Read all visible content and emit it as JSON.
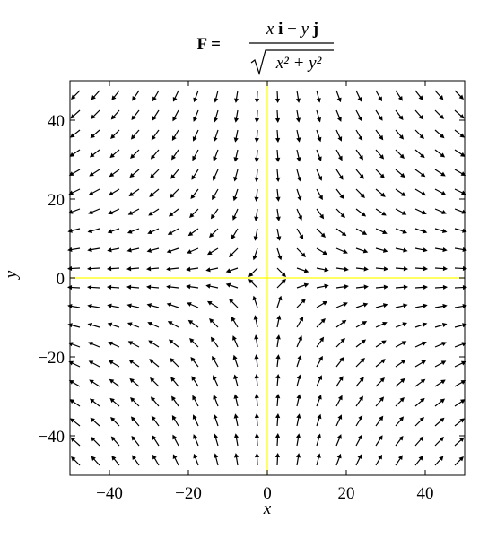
{
  "chart_data": {
    "type": "quiver",
    "title": {
      "lhs": "F =",
      "numerator": [
        "x",
        "i",
        "−",
        "y",
        "j"
      ],
      "denominator": "x² + y²"
    },
    "xlabel": "x",
    "ylabel": "y",
    "xlim": [
      -50,
      50
    ],
    "ylim": [
      -50,
      50
    ],
    "xticks": [
      {
        "value": -40,
        "label": "−40"
      },
      {
        "value": -20,
        "label": "−20"
      },
      0,
      20,
      40
    ],
    "yticks": [
      {
        "value": -40,
        "label": "−40"
      },
      {
        "value": -20,
        "label": "−20"
      },
      0,
      20,
      40
    ],
    "color": "#000000",
    "axis_line_color": "#ffff00",
    "x": [
      -47.5,
      -42.5,
      -37.5,
      -32.5,
      -27.5,
      -22.5,
      -17.5,
      -12.5,
      -7.5,
      -2.5,
      2.5,
      7.5,
      12.5,
      17.5,
      22.5,
      27.5,
      32.5,
      37.5,
      42.5,
      47.5
    ],
    "y": [
      -47.5,
      -42.5,
      -37.5,
      -32.5,
      -27.5,
      -22.5,
      -17.5,
      -12.5,
      -7.5,
      -2.5,
      2.5,
      7.5,
      12.5,
      17.5,
      22.5,
      27.5,
      32.5,
      37.5,
      42.5,
      47.5
    ],
    "u": [
      [
        -0.71,
        -0.67,
        -0.62,
        -0.56,
        -0.5,
        -0.43,
        -0.35,
        -0.25,
        -0.16,
        -0.05,
        0.05,
        0.16,
        0.25,
        0.35,
        0.43,
        0.5,
        0.56,
        0.62,
        0.67,
        0.71
      ],
      [
        -0.75,
        -0.71,
        -0.66,
        -0.61,
        -0.54,
        -0.47,
        -0.38,
        -0.28,
        -0.17,
        -0.06,
        0.06,
        0.17,
        0.28,
        0.38,
        0.47,
        0.54,
        0.61,
        0.66,
        0.71,
        0.75
      ],
      [
        -0.78,
        -0.75,
        -0.71,
        -0.65,
        -0.59,
        -0.51,
        -0.42,
        -0.32,
        -0.2,
        -0.07,
        0.07,
        0.2,
        0.32,
        0.42,
        0.51,
        0.59,
        0.65,
        0.71,
        0.75,
        0.78
      ],
      [
        -0.83,
        -0.79,
        -0.76,
        -0.71,
        -0.65,
        -0.57,
        -0.47,
        -0.36,
        -0.22,
        -0.08,
        0.08,
        0.22,
        0.36,
        0.47,
        0.57,
        0.65,
        0.71,
        0.76,
        0.79,
        0.83
      ],
      [
        -0.87,
        -0.84,
        -0.81,
        -0.76,
        -0.71,
        -0.63,
        -0.54,
        -0.41,
        -0.26,
        -0.09,
        0.09,
        0.26,
        0.41,
        0.54,
        0.63,
        0.71,
        0.76,
        0.81,
        0.84,
        0.87
      ],
      [
        -0.9,
        -0.88,
        -0.86,
        -0.82,
        -0.77,
        -0.71,
        -0.61,
        -0.49,
        -0.32,
        -0.11,
        0.11,
        0.32,
        0.49,
        0.61,
        0.71,
        0.77,
        0.82,
        0.86,
        0.88,
        0.9
      ],
      [
        -0.94,
        -0.92,
        -0.91,
        -0.88,
        -0.84,
        -0.79,
        -0.71,
        -0.58,
        -0.39,
        -0.14,
        0.14,
        0.39,
        0.58,
        0.71,
        0.79,
        0.84,
        0.88,
        0.91,
        0.92,
        0.94
      ],
      [
        -0.97,
        -0.96,
        -0.95,
        -0.93,
        -0.91,
        -0.87,
        -0.81,
        -0.71,
        -0.51,
        -0.2,
        0.2,
        0.51,
        0.71,
        0.81,
        0.87,
        0.91,
        0.93,
        0.95,
        0.96,
        0.97
      ],
      [
        -0.99,
        -0.98,
        -0.98,
        -0.97,
        -0.96,
        -0.95,
        -0.92,
        -0.86,
        -0.71,
        -0.32,
        0.32,
        0.71,
        0.86,
        0.92,
        0.95,
        0.96,
        0.97,
        0.98,
        0.98,
        0.99
      ],
      [
        -1,
        -1,
        -1,
        -1,
        -1,
        -0.99,
        -0.99,
        -0.98,
        -0.95,
        -0.71,
        0.71,
        0.95,
        0.98,
        0.99,
        0.99,
        1,
        1,
        1,
        1,
        1
      ],
      [
        -1,
        -1,
        -1,
        -1,
        -1,
        -0.99,
        -0.99,
        -0.98,
        -0.95,
        -0.71,
        0.71,
        0.95,
        0.98,
        0.99,
        0.99,
        1,
        1,
        1,
        1,
        1
      ],
      [
        -0.99,
        -0.98,
        -0.98,
        -0.97,
        -0.96,
        -0.95,
        -0.92,
        -0.86,
        -0.71,
        -0.32,
        0.32,
        0.71,
        0.86,
        0.92,
        0.95,
        0.96,
        0.97,
        0.98,
        0.98,
        0.99
      ],
      [
        -0.97,
        -0.96,
        -0.95,
        -0.93,
        -0.91,
        -0.87,
        -0.81,
        -0.71,
        -0.51,
        -0.2,
        0.2,
        0.51,
        0.71,
        0.81,
        0.87,
        0.91,
        0.93,
        0.95,
        0.96,
        0.97
      ],
      [
        -0.94,
        -0.92,
        -0.91,
        -0.88,
        -0.84,
        -0.79,
        -0.71,
        -0.58,
        -0.39,
        -0.14,
        0.14,
        0.39,
        0.58,
        0.71,
        0.79,
        0.84,
        0.88,
        0.91,
        0.92,
        0.94
      ],
      [
        -0.9,
        -0.88,
        -0.86,
        -0.82,
        -0.77,
        -0.71,
        -0.61,
        -0.49,
        -0.32,
        -0.11,
        0.11,
        0.32,
        0.49,
        0.61,
        0.71,
        0.77,
        0.82,
        0.86,
        0.88,
        0.9
      ],
      [
        -0.87,
        -0.84,
        -0.81,
        -0.76,
        -0.71,
        -0.63,
        -0.54,
        -0.41,
        -0.26,
        -0.09,
        0.09,
        0.26,
        0.41,
        0.54,
        0.63,
        0.71,
        0.76,
        0.81,
        0.84,
        0.87
      ],
      [
        -0.83,
        -0.79,
        -0.76,
        -0.71,
        -0.65,
        -0.57,
        -0.47,
        -0.36,
        -0.22,
        -0.08,
        0.08,
        0.22,
        0.36,
        0.47,
        0.57,
        0.65,
        0.71,
        0.76,
        0.79,
        0.83
      ],
      [
        -0.78,
        -0.75,
        -0.71,
        -0.65,
        -0.59,
        -0.51,
        -0.42,
        -0.32,
        -0.2,
        -0.07,
        0.07,
        0.2,
        0.32,
        0.42,
        0.51,
        0.59,
        0.65,
        0.71,
        0.75,
        0.78
      ],
      [
        -0.75,
        -0.71,
        -0.66,
        -0.61,
        -0.54,
        -0.47,
        -0.38,
        -0.28,
        -0.17,
        -0.06,
        0.06,
        0.17,
        0.28,
        0.38,
        0.47,
        0.54,
        0.61,
        0.66,
        0.71,
        0.75
      ],
      [
        -0.71,
        -0.67,
        -0.62,
        -0.56,
        -0.5,
        -0.43,
        -0.35,
        -0.25,
        -0.16,
        -0.05,
        0.05,
        0.16,
        0.25,
        0.35,
        0.43,
        0.5,
        0.56,
        0.62,
        0.67,
        0.71
      ]
    ],
    "v": [
      [
        0.71,
        0.75,
        0.78,
        0.83,
        0.87,
        0.9,
        0.94,
        0.97,
        0.99,
        1,
        1,
        0.99,
        0.97,
        0.94,
        0.9,
        0.87,
        0.83,
        0.78,
        0.75,
        0.71
      ],
      [
        0.67,
        0.71,
        0.75,
        0.79,
        0.84,
        0.88,
        0.92,
        0.96,
        0.98,
        1,
        1,
        0.98,
        0.96,
        0.92,
        0.88,
        0.84,
        0.79,
        0.75,
        0.71,
        0.67
      ],
      [
        0.62,
        0.66,
        0.71,
        0.76,
        0.81,
        0.86,
        0.91,
        0.95,
        0.98,
        1,
        1,
        0.98,
        0.95,
        0.91,
        0.86,
        0.81,
        0.76,
        0.71,
        0.66,
        0.62
      ],
      [
        0.56,
        0.61,
        0.65,
        0.71,
        0.76,
        0.82,
        0.88,
        0.93,
        0.97,
        1,
        1,
        0.97,
        0.93,
        0.88,
        0.82,
        0.76,
        0.71,
        0.65,
        0.61,
        0.56
      ],
      [
        0.5,
        0.54,
        0.59,
        0.65,
        0.71,
        0.77,
        0.84,
        0.91,
        0.96,
        1,
        1,
        0.96,
        0.91,
        0.84,
        0.77,
        0.71,
        0.65,
        0.59,
        0.54,
        0.5
      ],
      [
        0.43,
        0.47,
        0.51,
        0.57,
        0.63,
        0.71,
        0.79,
        0.87,
        0.95,
        0.99,
        0.99,
        0.95,
        0.87,
        0.79,
        0.71,
        0.63,
        0.57,
        0.51,
        0.47,
        0.43
      ],
      [
        0.35,
        0.38,
        0.42,
        0.47,
        0.54,
        0.61,
        0.71,
        0.81,
        0.92,
        0.99,
        0.99,
        0.92,
        0.81,
        0.71,
        0.61,
        0.54,
        0.47,
        0.42,
        0.38,
        0.35
      ],
      [
        0.25,
        0.28,
        0.32,
        0.36,
        0.41,
        0.49,
        0.58,
        0.71,
        0.86,
        0.98,
        0.98,
        0.86,
        0.71,
        0.58,
        0.49,
        0.41,
        0.36,
        0.32,
        0.28,
        0.25
      ],
      [
        0.16,
        0.17,
        0.2,
        0.22,
        0.26,
        0.32,
        0.39,
        0.51,
        0.71,
        0.95,
        0.95,
        0.71,
        0.51,
        0.39,
        0.32,
        0.26,
        0.22,
        0.2,
        0.17,
        0.16
      ],
      [
        0.05,
        0.06,
        0.07,
        0.08,
        0.09,
        0.11,
        0.14,
        0.2,
        0.32,
        0.71,
        0.71,
        0.32,
        0.2,
        0.14,
        0.11,
        0.09,
        0.08,
        0.07,
        0.06,
        0.05
      ],
      [
        -0.05,
        -0.06,
        -0.07,
        -0.08,
        -0.09,
        -0.11,
        -0.14,
        -0.2,
        -0.32,
        -0.71,
        -0.71,
        -0.32,
        -0.2,
        -0.14,
        -0.11,
        -0.09,
        -0.08,
        -0.07,
        -0.06,
        -0.05
      ],
      [
        -0.16,
        -0.17,
        -0.2,
        -0.22,
        -0.26,
        -0.32,
        -0.39,
        -0.51,
        -0.71,
        -0.95,
        -0.95,
        -0.71,
        -0.51,
        -0.39,
        -0.32,
        -0.26,
        -0.22,
        -0.2,
        -0.17,
        -0.16
      ],
      [
        -0.25,
        -0.28,
        -0.32,
        -0.36,
        -0.41,
        -0.49,
        -0.58,
        -0.71,
        -0.86,
        -0.98,
        -0.98,
        -0.86,
        -0.71,
        -0.58,
        -0.49,
        -0.41,
        -0.36,
        -0.32,
        -0.28,
        -0.25
      ],
      [
        -0.35,
        -0.38,
        -0.42,
        -0.47,
        -0.54,
        -0.61,
        -0.71,
        -0.81,
        -0.92,
        -0.99,
        -0.99,
        -0.92,
        -0.81,
        -0.71,
        -0.61,
        -0.54,
        -0.47,
        -0.42,
        -0.38,
        -0.35
      ],
      [
        -0.43,
        -0.47,
        -0.51,
        -0.57,
        -0.63,
        -0.71,
        -0.79,
        -0.87,
        -0.95,
        -0.99,
        -0.99,
        -0.95,
        -0.87,
        -0.79,
        -0.71,
        -0.63,
        -0.57,
        -0.51,
        -0.47,
        -0.43
      ],
      [
        -0.5,
        -0.54,
        -0.59,
        -0.65,
        -0.71,
        -0.77,
        -0.84,
        -0.91,
        -0.96,
        -1,
        -1,
        -0.96,
        -0.91,
        -0.84,
        -0.77,
        -0.71,
        -0.65,
        -0.59,
        -0.54,
        -0.5
      ],
      [
        -0.56,
        -0.61,
        -0.65,
        -0.71,
        -0.76,
        -0.82,
        -0.88,
        -0.93,
        -0.97,
        -1,
        -1,
        -0.97,
        -0.93,
        -0.88,
        -0.82,
        -0.76,
        -0.71,
        -0.65,
        -0.61,
        -0.56
      ],
      [
        -0.62,
        -0.66,
        -0.71,
        -0.76,
        -0.81,
        -0.86,
        -0.91,
        -0.95,
        -0.98,
        -1,
        -1,
        -0.98,
        -0.95,
        -0.91,
        -0.86,
        -0.81,
        -0.76,
        -0.71,
        -0.66,
        -0.62
      ],
      [
        -0.67,
        -0.71,
        -0.75,
        -0.79,
        -0.84,
        -0.88,
        -0.92,
        -0.96,
        -0.98,
        -1,
        -1,
        -0.98,
        -0.96,
        -0.92,
        -0.88,
        -0.84,
        -0.79,
        -0.75,
        -0.71,
        -0.67
      ],
      [
        -0.71,
        -0.75,
        -0.78,
        -0.83,
        -0.87,
        -0.9,
        -0.94,
        -0.97,
        -0.99,
        -1,
        -1,
        -0.99,
        -0.97,
        -0.94,
        -0.9,
        -0.87,
        -0.83,
        -0.78,
        -0.75,
        -0.71
      ]
    ]
  }
}
